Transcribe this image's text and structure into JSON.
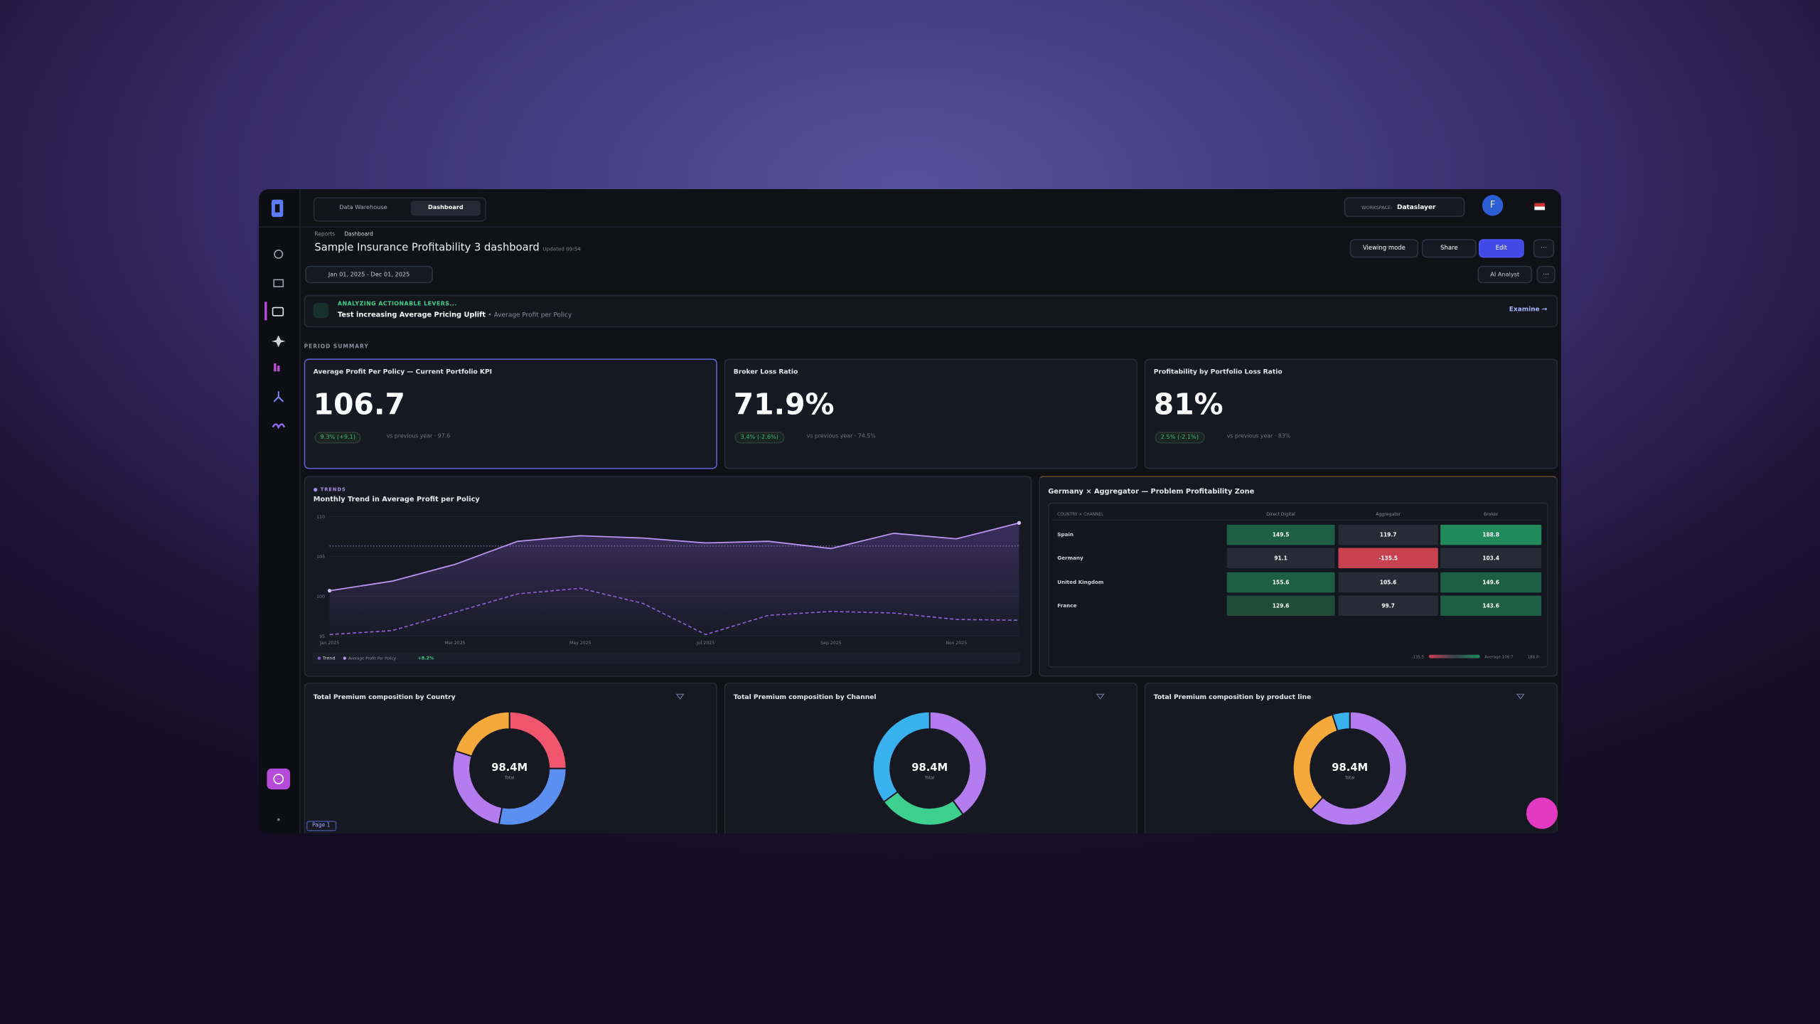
{
  "nav": {
    "tabs": [
      "Data Warehouse",
      "Dashboard"
    ],
    "workspace_label": "WORKSPACE:",
    "workspace": "Dataslayer",
    "avatar": "F"
  },
  "header": {
    "breadcrumb": [
      "Reports",
      "Dashboard"
    ],
    "title": "Sample Insurance Profitability 3 dashboard",
    "updated": "Updated 09:54",
    "actions": [
      "Viewing mode",
      "Share",
      "Edit"
    ],
    "date_range": "Jan 01, 2025 - Dec 01, 2025",
    "ai_analyst": "AI Analyst"
  },
  "banner": {
    "label": "ANALYZING ACTIONABLE LEVERS...",
    "text": "Test increasing Average Pricing Uplift",
    "sub": "• Average Profit per Policy",
    "action": "Examine →"
  },
  "period_summary": {
    "label": "PERIOD SUMMARY",
    "kpis": [
      {
        "title": "Average Profit Per Policy — Current Portfolio KPI",
        "value": "106.7",
        "change": "9.3% (+9.1)",
        "compare": "vs previous year · 97.6"
      },
      {
        "title": "Broker Loss Ratio",
        "value": "71.9%",
        "change": "3.4% (-2.6%)",
        "compare": "vs previous year · 74.5%"
      },
      {
        "title": "Profitability by Portfolio Loss Ratio",
        "value": "81%",
        "change": "2.5% (-2.1%)",
        "compare": "vs previous year · 83%"
      }
    ]
  },
  "trend": {
    "kicker": "TRENDS",
    "title": "Monthly Trend in Average Profit per Policy",
    "categories": [
      "Jan 2025",
      null,
      "Mar 2025",
      null,
      "May 2025",
      null,
      "Jul 2025",
      null,
      "Sep 2025",
      null,
      "Nov 2025",
      null
    ],
    "series": [
      {
        "name": "Trend",
        "color": "#8e62d9",
        "dashed": true,
        "values": [
          95.2,
          95.7,
          98,
          100.3,
          101,
          99.1,
          95.2,
          97.6,
          98.1,
          97.9,
          97.1,
          97
        ]
      },
      {
        "name": "Average Profit Per Policy",
        "color": "#b995f2",
        "dashed": false,
        "values": [
          100.7,
          101.9,
          104,
          106.9,
          107.6,
          107.3,
          106.7,
          106.9,
          106,
          107.9,
          107.2,
          109.2
        ]
      }
    ],
    "reference_line": 106.3,
    "ylim": [
      95,
      110
    ],
    "yticks": [
      95,
      100,
      105,
      110
    ],
    "legend_change": "+8.2%"
  },
  "heatmap": {
    "title": "Germany × Aggregator — Problem Profitability Zone",
    "corner": "COUNTRY × CHANNEL",
    "columns": [
      "Direct Digital",
      "Aggregator",
      "Broker"
    ],
    "rows": [
      {
        "name": "Spain",
        "values": [
          149.5,
          119.7,
          188.8
        ]
      },
      {
        "name": "Germany",
        "values": [
          91.1,
          -135.5,
          103.4
        ]
      },
      {
        "name": "United Kingdom",
        "values": [
          155.6,
          105.6,
          149.6
        ]
      },
      {
        "name": "France",
        "values": [
          129.6,
          99.7,
          143.6
        ]
      }
    ],
    "legend": [
      "-135.5",
      "Average 106.7",
      "188.8"
    ]
  },
  "donuts": [
    {
      "title": "Total Premium composition by Country",
      "total_label": "98.4M",
      "total_caption": "Total",
      "segments": [
        {
          "color": "#f0566e",
          "value": 25
        },
        {
          "color": "#5b8ff0",
          "value": 28
        },
        {
          "color": "#b57cf0",
          "value": 27
        },
        {
          "color": "#f5a93a",
          "value": 20
        }
      ]
    },
    {
      "title": "Total Premium composition by Channel",
      "total_label": "98.4M",
      "total_caption": "Total",
      "segments": [
        {
          "color": "#b57cf0",
          "value": 40
        },
        {
          "color": "#3ccf8e",
          "value": 25
        },
        {
          "color": "#3ab2ef",
          "value": 35
        }
      ]
    },
    {
      "title": "Total Premium composition by product line",
      "total_label": "98.4M",
      "total_caption": "Total",
      "segments": [
        {
          "color": "#b57cf0",
          "value": 62
        },
        {
          "color": "#f5a93a",
          "value": 33
        },
        {
          "color": "#3ab2ef",
          "value": 5
        }
      ]
    }
  ],
  "footer": {
    "page": "Page 1"
  }
}
